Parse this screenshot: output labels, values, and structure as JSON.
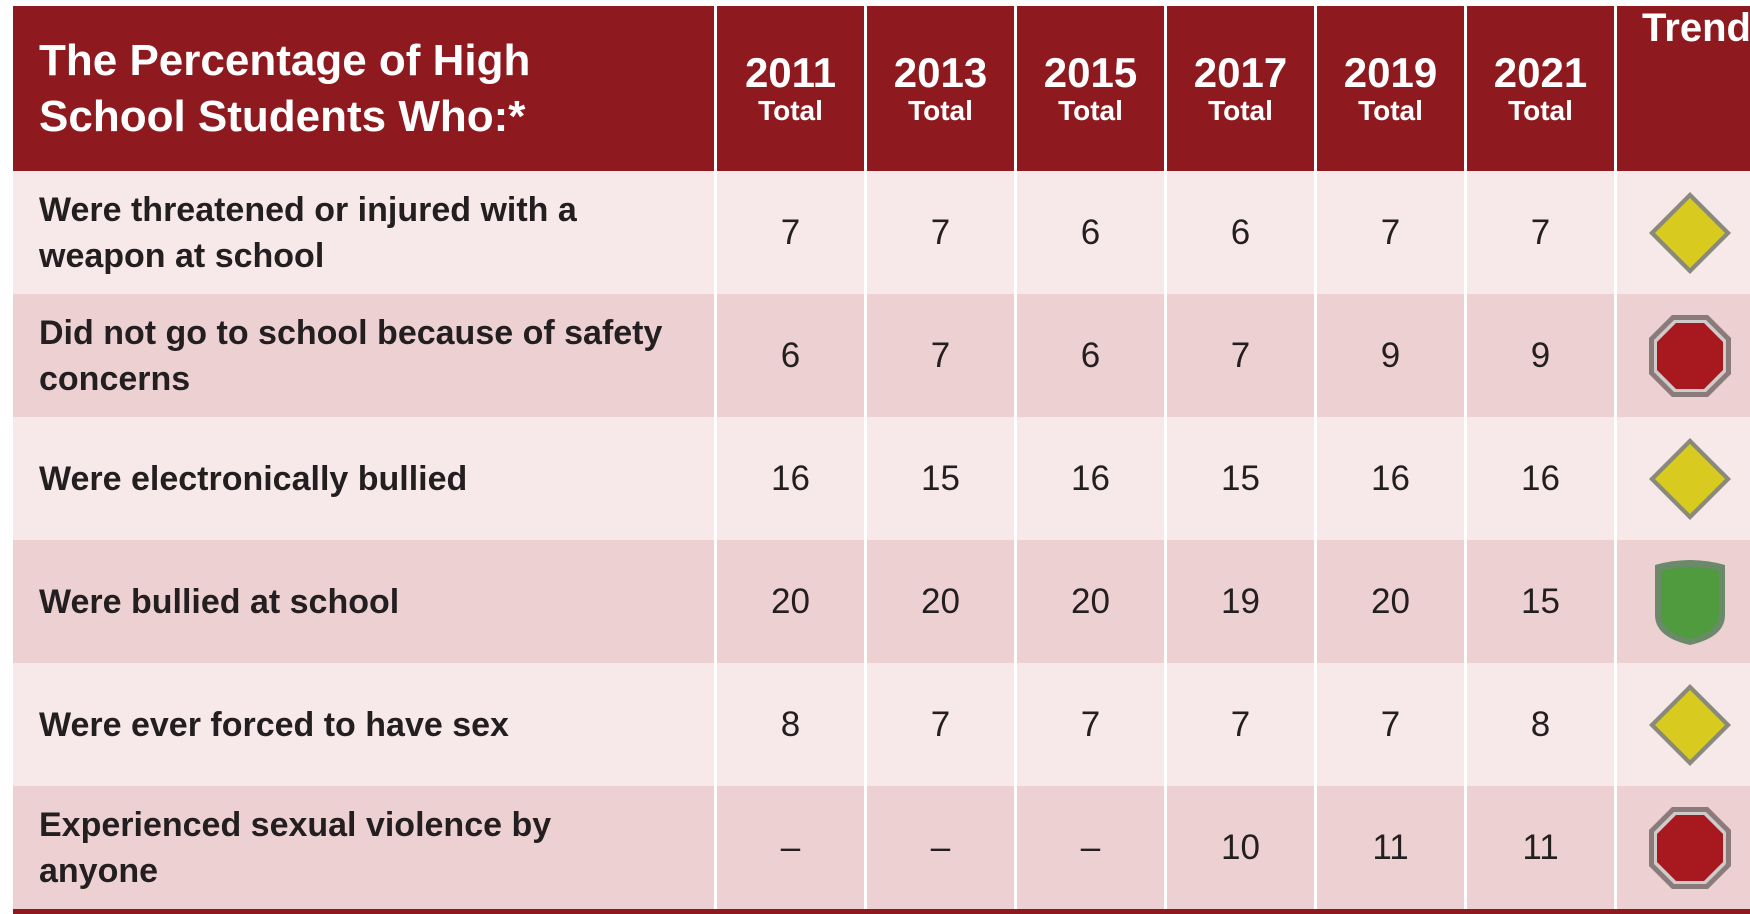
{
  "header": {
    "title": "The Percentage of High School Students Who:*",
    "columns": [
      {
        "year": "2011",
        "sub": "Total"
      },
      {
        "year": "2013",
        "sub": "Total"
      },
      {
        "year": "2015",
        "sub": "Total"
      },
      {
        "year": "2017",
        "sub": "Total"
      },
      {
        "year": "2019",
        "sub": "Total"
      },
      {
        "year": "2021",
        "sub": "Total"
      }
    ],
    "trend": "Trend"
  },
  "table": {
    "rows": [
      {
        "label": "Were threatened or injured with a weapon at school",
        "values": [
          7,
          7,
          6,
          6,
          7,
          7
        ]
      },
      {
        "label": "Did not go to school because of safety concerns",
        "values": [
          6,
          7,
          6,
          7,
          9,
          9
        ]
      },
      {
        "label": "Were electronically bullied",
        "values": [
          16,
          15,
          16,
          15,
          16,
          16
        ]
      },
      {
        "label": "Were bullied at school",
        "values": [
          20,
          20,
          20,
          19,
          20,
          15
        ]
      },
      {
        "label": "Were ever forced to have sex",
        "values": [
          8,
          7,
          7,
          7,
          7,
          8
        ]
      },
      {
        "label": "Experienced sexual violence by anyone",
        "values": [
          "–",
          "–",
          "–",
          10,
          11,
          11
        ]
      }
    ]
  }
}
